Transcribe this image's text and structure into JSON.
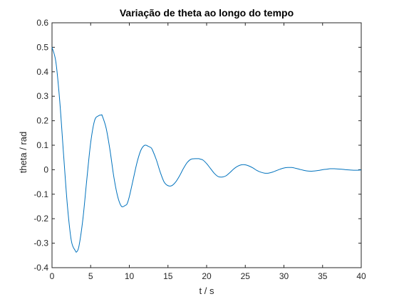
{
  "chart_data": {
    "type": "line",
    "title": "Variação de theta ao longo do tempo",
    "xlabel": "t / s",
    "ylabel": "theta / rad",
    "xlim": [
      0,
      40
    ],
    "ylim": [
      -0.4,
      0.6
    ],
    "xticks": [
      "0",
      "5",
      "10",
      "15",
      "20",
      "25",
      "30",
      "35",
      "40"
    ],
    "yticks": [
      "-0.4",
      "-0.3",
      "-0.2",
      "-0.1",
      "0",
      "0.1",
      "0.2",
      "0.3",
      "0.4",
      "0.5",
      "0.6"
    ],
    "grid": false,
    "series": [
      {
        "color": "#0072BD",
        "x": [
          0,
          0.5,
          1,
          1.5,
          2,
          2.5,
          3,
          3.2,
          3.5,
          4,
          4.5,
          5,
          5.5,
          6,
          6.4,
          6.5,
          7,
          7.5,
          8,
          8.5,
          9,
          9.5,
          9.7,
          10,
          10.5,
          11,
          11.5,
          12,
          12.5,
          12.8,
          13,
          13.5,
          14,
          14.5,
          15,
          15.5,
          16,
          16.5,
          17,
          17.5,
          18,
          18.5,
          19,
          19.1,
          19.5,
          20,
          20.5,
          21,
          21.5,
          22,
          22.5,
          23,
          23.5,
          24,
          24.5,
          25,
          25.5,
          26,
          26.5,
          27,
          27.5,
          28,
          28.5,
          29,
          29.5,
          30,
          30.5,
          31,
          31.5,
          32,
          32.5,
          33,
          33.5,
          34,
          34.5,
          35,
          35.5,
          36,
          36.5,
          37,
          37.5,
          38,
          38.5,
          39,
          39.5,
          40
        ],
        "y": [
          0.5,
          0.44,
          0.28,
          0.06,
          -0.15,
          -0.29,
          -0.33,
          -0.335,
          -0.31,
          -0.2,
          -0.04,
          0.11,
          0.2,
          0.22,
          0.223,
          0.22,
          0.17,
          0.08,
          -0.03,
          -0.11,
          -0.15,
          -0.145,
          -0.14,
          -0.11,
          -0.04,
          0.03,
          0.08,
          0.1,
          0.095,
          0.09,
          0.08,
          0.04,
          -0.01,
          -0.05,
          -0.065,
          -0.065,
          -0.05,
          -0.025,
          0.005,
          0.03,
          0.043,
          0.045,
          0.045,
          0.044,
          0.04,
          0.025,
          0.005,
          -0.015,
          -0.028,
          -0.03,
          -0.025,
          -0.012,
          0.003,
          0.014,
          0.02,
          0.02,
          0.015,
          0.007,
          -0.003,
          -0.01,
          -0.014,
          -0.014,
          -0.01,
          -0.004,
          0.002,
          0.007,
          0.009,
          0.009,
          0.006,
          0.002,
          -0.002,
          -0.005,
          -0.006,
          -0.005,
          -0.003,
          0.0,
          0.002,
          0.004,
          0.004,
          0.003,
          0.002,
          0.0,
          -0.001,
          -0.002,
          -0.002,
          -0.001
        ]
      }
    ]
  }
}
